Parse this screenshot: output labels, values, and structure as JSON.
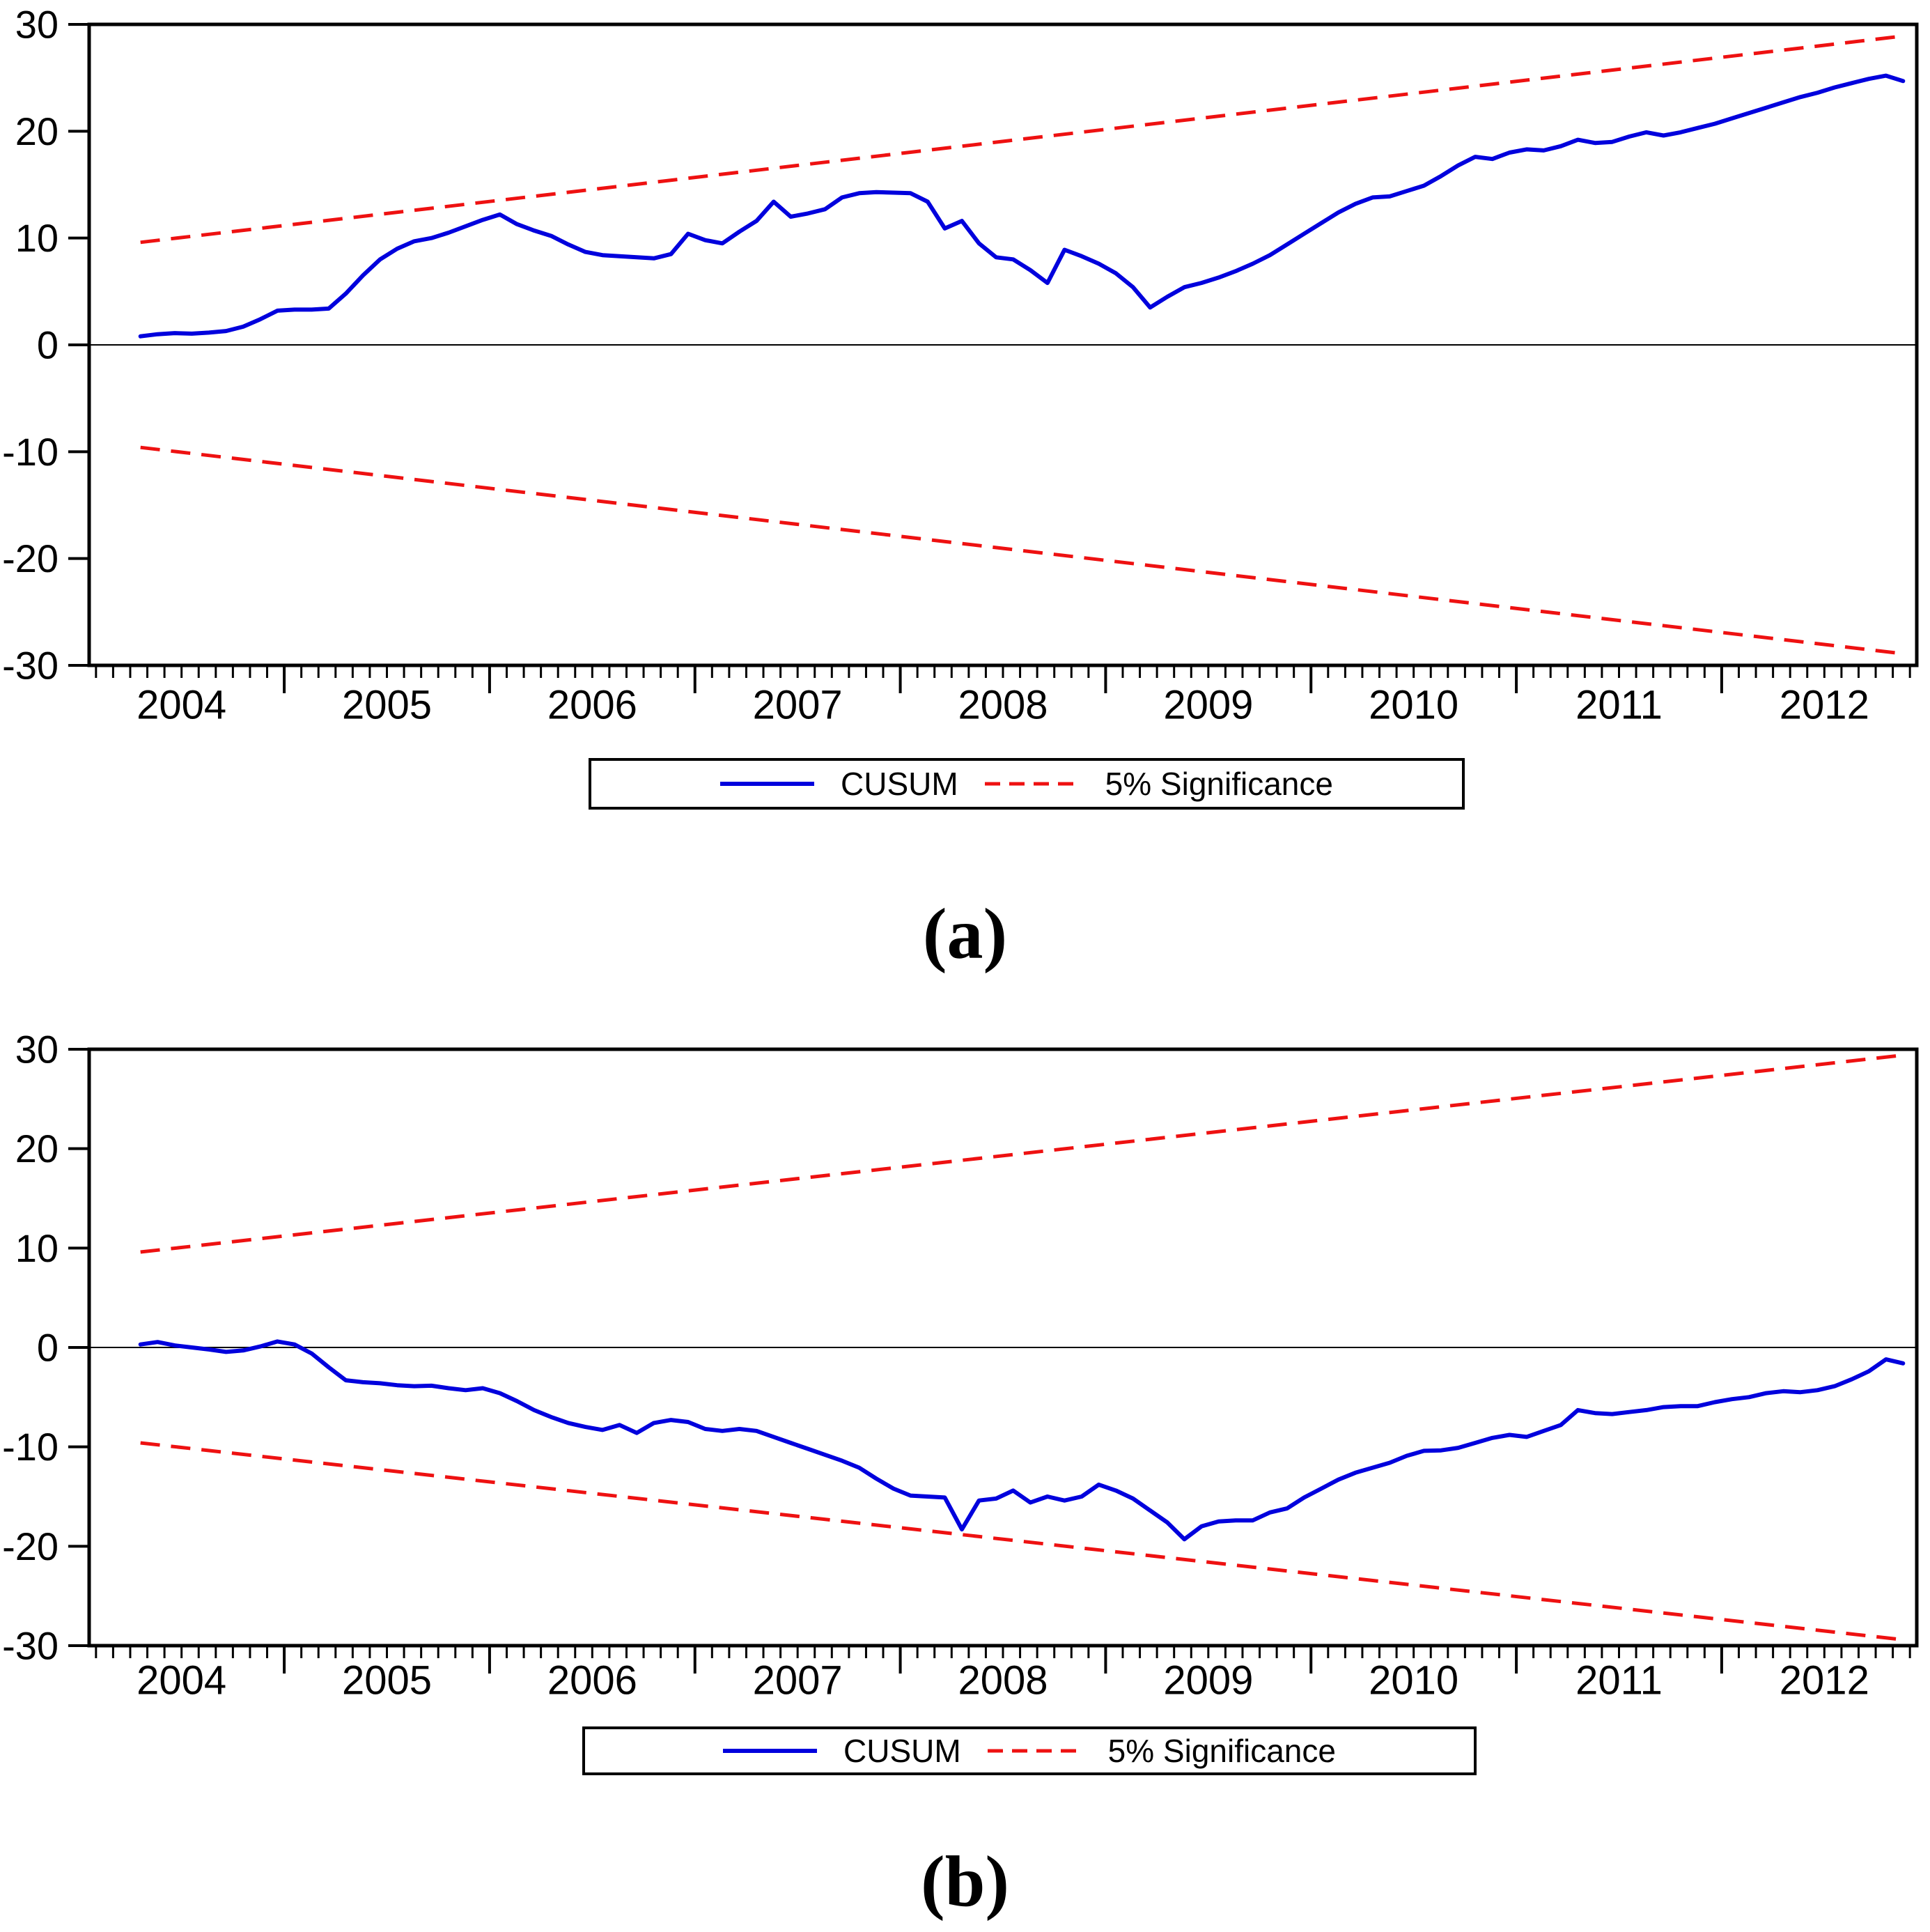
{
  "figure": {
    "background": "#ffffff",
    "axis_color": "#000000",
    "series_color": "#0000dd",
    "bound_color": "#ee1111"
  },
  "chart_data": [
    {
      "type": "line",
      "panel": "a",
      "caption": "(a)",
      "xlim": [
        2004.05,
        2012.95
      ],
      "ylim": [
        -30,
        30
      ],
      "grid": false,
      "y_ticks": [
        30,
        20,
        10,
        0,
        -10,
        -20,
        -30
      ],
      "y_tick_labels": [
        "30",
        "20",
        "10",
        "0",
        "-10",
        "-20",
        "-30"
      ],
      "x_tick_years": [
        2004,
        2005,
        2006,
        2007,
        2008,
        2009,
        2010,
        2011,
        2012
      ],
      "x_year_labels": [
        "2004",
        "2005",
        "2006",
        "2007",
        "2008",
        "2009",
        "2010",
        "2011",
        "2012"
      ],
      "legend": {
        "position": "bottom",
        "entries": [
          {
            "label": "CUSUM",
            "color": "#0000dd",
            "style": "solid"
          },
          {
            "label": "5% Significance",
            "color": "#ee1111",
            "style": "dashed"
          }
        ]
      },
      "series": [
        {
          "name": "CUSUM",
          "color": "#0000dd",
          "style": "solid",
          "x_start": 2004.3,
          "x_step": 0.0833333,
          "values": [
            0.8,
            1.0,
            1.1,
            1.05,
            1.15,
            1.3,
            1.7,
            2.4,
            3.2,
            3.3,
            3.3,
            3.4,
            4.8,
            6.5,
            8.0,
            9.0,
            9.7,
            10.0,
            10.5,
            11.1,
            11.7,
            12.2,
            11.3,
            10.7,
            10.2,
            9.4,
            8.7,
            8.4,
            8.3,
            8.2,
            8.1,
            8.5,
            10.4,
            9.8,
            9.5,
            10.6,
            11.6,
            13.4,
            12.0,
            12.3,
            12.7,
            13.8,
            14.2,
            14.3,
            14.25,
            14.2,
            13.4,
            10.9,
            11.6,
            9.5,
            8.2,
            8.0,
            7.0,
            5.8,
            8.9,
            8.3,
            7.6,
            6.7,
            5.4,
            3.5,
            4.5,
            5.4,
            5.8,
            6.3,
            6.9,
            7.6,
            8.4,
            9.4,
            10.4,
            11.4,
            12.4,
            13.2,
            13.8,
            13.9,
            14.4,
            14.9,
            15.8,
            16.8,
            17.6,
            17.4,
            18.0,
            18.3,
            18.2,
            18.6,
            19.2,
            18.9,
            19.0,
            19.5,
            19.9,
            19.6,
            19.9,
            20.3,
            20.7,
            21.2,
            21.7,
            22.2,
            22.7,
            23.2,
            23.6,
            24.1,
            24.5,
            24.9,
            25.2,
            24.7
          ]
        },
        {
          "name": "5% Significance upper",
          "color": "#ee1111",
          "style": "dashed",
          "points": [
            [
              2004.3,
              9.6
            ],
            [
              2012.88,
              28.9
            ]
          ]
        },
        {
          "name": "5% Significance lower",
          "color": "#ee1111",
          "style": "dashed",
          "points": [
            [
              2004.3,
              -9.6
            ],
            [
              2012.88,
              -28.9
            ]
          ]
        }
      ]
    },
    {
      "type": "line",
      "panel": "b",
      "caption": "(b)",
      "xlim": [
        2004.05,
        2012.95
      ],
      "ylim": [
        -30,
        30
      ],
      "grid": false,
      "y_ticks": [
        30,
        20,
        10,
        0,
        -10,
        -20,
        -30
      ],
      "y_tick_labels": [
        "30",
        "20",
        "10",
        "0",
        "-10",
        "-20",
        "-30"
      ],
      "x_tick_years": [
        2004,
        2005,
        2006,
        2007,
        2008,
        2009,
        2010,
        2011,
        2012
      ],
      "x_year_labels": [
        "2004",
        "2005",
        "2006",
        "2007",
        "2008",
        "2009",
        "2010",
        "2011",
        "2012"
      ],
      "legend": {
        "position": "bottom",
        "entries": [
          {
            "label": "CUSUM",
            "color": "#0000dd",
            "style": "solid"
          },
          {
            "label": "5% Significance",
            "color": "#ee1111",
            "style": "dashed"
          }
        ]
      },
      "series": [
        {
          "name": "CUSUM",
          "color": "#0000dd",
          "style": "solid",
          "x_start": 2004.3,
          "x_step": 0.0833333,
          "values": [
            0.3,
            0.55,
            0.2,
            0.0,
            -0.2,
            -0.45,
            -0.3,
            0.1,
            0.6,
            0.3,
            -0.6,
            -2.0,
            -3.3,
            -3.5,
            -3.6,
            -3.8,
            -3.9,
            -3.85,
            -4.1,
            -4.3,
            -4.1,
            -4.6,
            -5.4,
            -6.3,
            -7.0,
            -7.6,
            -8.0,
            -8.3,
            -7.8,
            -8.6,
            -7.6,
            -7.3,
            -7.5,
            -8.2,
            -8.4,
            -8.2,
            -8.4,
            -9.0,
            -9.6,
            -10.2,
            -10.8,
            -11.4,
            -12.1,
            -13.2,
            -14.2,
            -14.9,
            -15.0,
            -15.1,
            -18.3,
            -15.4,
            -15.2,
            -14.4,
            -15.6,
            -15.0,
            -15.4,
            -15.0,
            -13.8,
            -14.4,
            -15.2,
            -16.4,
            -17.6,
            -19.3,
            -18.0,
            -17.5,
            -17.4,
            -17.4,
            -16.6,
            -16.2,
            -15.1,
            -14.2,
            -13.3,
            -12.6,
            -12.1,
            -11.6,
            -10.9,
            -10.4,
            -10.35,
            -10.1,
            -9.6,
            -9.1,
            -8.8,
            -9.0,
            -8.4,
            -7.8,
            -6.3,
            -6.6,
            -6.7,
            -6.5,
            -6.3,
            -6.0,
            -5.9,
            -5.9,
            -5.5,
            -5.2,
            -5.0,
            -4.6,
            -4.4,
            -4.5,
            -4.3,
            -3.9,
            -3.2,
            -2.4,
            -1.2,
            -1.6
          ]
        },
        {
          "name": "5% Significance upper",
          "color": "#ee1111",
          "style": "dashed",
          "points": [
            [
              2004.3,
              9.6
            ],
            [
              2012.88,
              29.4
            ]
          ]
        },
        {
          "name": "5% Significance lower",
          "color": "#ee1111",
          "style": "dashed",
          "points": [
            [
              2004.3,
              -9.6
            ],
            [
              2012.88,
              -29.4
            ]
          ]
        }
      ]
    }
  ]
}
